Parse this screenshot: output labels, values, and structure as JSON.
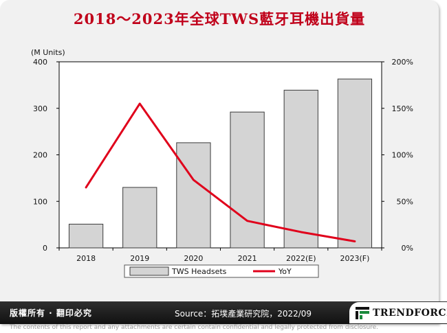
{
  "title": "2018～2023年全球TWS藍牙耳機出貨量",
  "unit_label": "(M Units)",
  "footer": {
    "rights": "版權所有 · 翻印必究",
    "source": "Source：拓墣產業研究院，2022/09",
    "logo": "TRENDFORCE"
  },
  "disclaimer": "The contents of this report and any attachments are certain contain confidential and legally protected from disclosure.",
  "chart_data": {
    "type": "bar",
    "categories": [
      "2018",
      "2019",
      "2020",
      "2021",
      "2022(E)",
      "2023(F)"
    ],
    "series": [
      {
        "name": "TWS Headsets",
        "type": "bar",
        "axis": "left",
        "values": [
          51,
          130,
          226,
          292,
          339,
          363
        ]
      },
      {
        "name": "YoY",
        "type": "line",
        "axis": "right",
        "values": [
          65,
          155,
          73,
          29,
          17,
          7
        ]
      }
    ],
    "ylabel": "(M Units)",
    "ylim": [
      0,
      400
    ],
    "yticks": [
      0,
      100,
      200,
      300,
      400
    ],
    "y2lim": [
      0,
      200
    ],
    "y2ticks": [
      "0%",
      "50%",
      "100%",
      "150%",
      "200%"
    ],
    "legend": "bottom",
    "grid": false,
    "colors": {
      "bar_fill": "#d4d4d4",
      "bar_stroke": "#3a3a3a",
      "line": "#e0001b",
      "title": "#c0001a"
    }
  }
}
